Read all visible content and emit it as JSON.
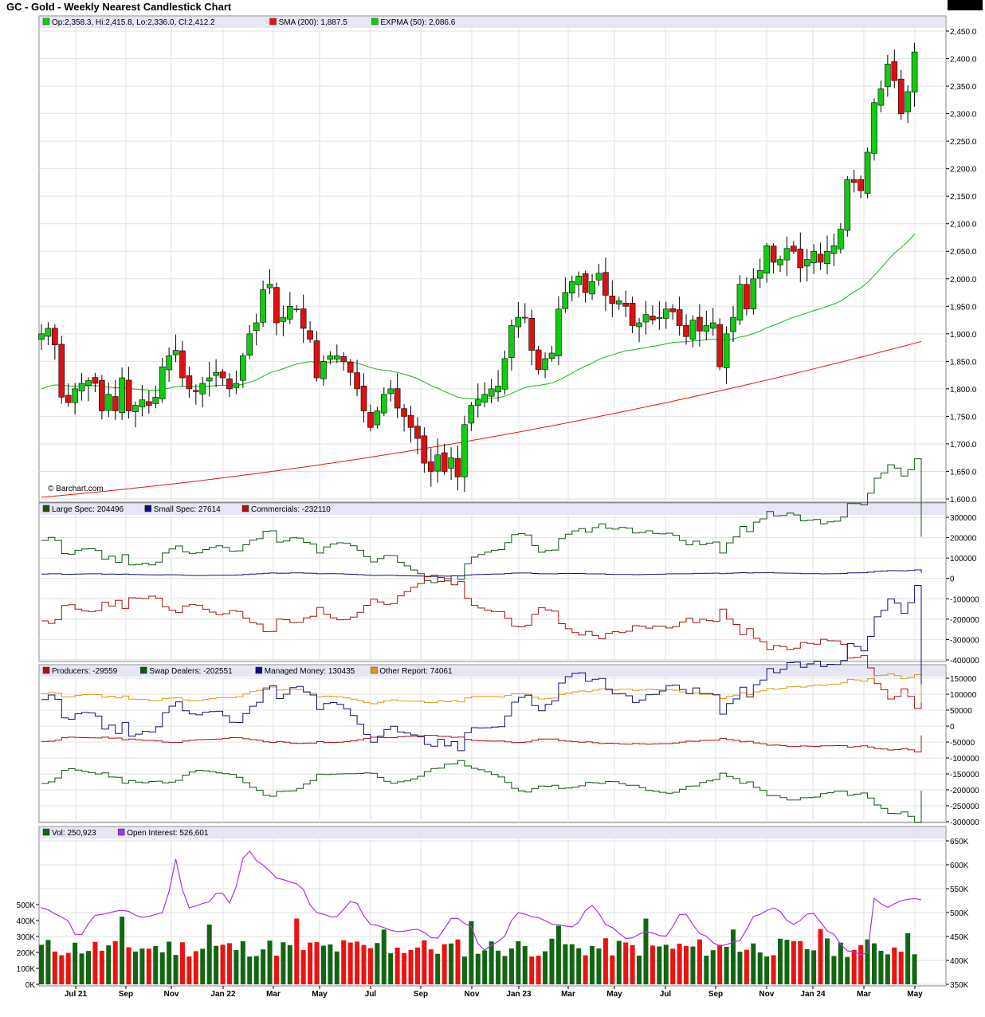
{
  "title": "GC - Gold - Weekly Nearest Candlestick Chart",
  "watermark": "© Barchart.com",
  "colors": {
    "up": "#11cc11",
    "down": "#dd1111",
    "sma": "#ee1111",
    "expma": "#11bb11",
    "large_spec": "#115511",
    "small_spec": "#111177",
    "commercials": "#aa1111",
    "producers": "#aa1111",
    "swap": "#115511",
    "managed": "#111177",
    "other": "#dd9911",
    "vol_up": "#116611",
    "vol_down": "#ee1111",
    "open_interest": "#aa33ee",
    "legend_band": "#e6e6f5"
  },
  "x_axis_labels": [
    "Jul 21",
    "Sep",
    "Nov",
    "Jan 22",
    "Mar",
    "May",
    "Jul",
    "Sep",
    "Nov",
    "Jan 23",
    "Mar",
    "May",
    "Jul",
    "Sep",
    "Nov",
    "Jan 24",
    "Mar",
    "May"
  ],
  "chart_data": [
    {
      "type": "candlestick",
      "name": "price",
      "legend": [
        {
          "label": "Op:2,358.3, Hi:2,415.8, Lo:2,336.0, Cl:2,412.2",
          "color": "#11cc11"
        },
        {
          "label": "SMA (200): 1,887.5",
          "color": "#ee1111"
        },
        {
          "label": "EXPMA (50): 2,086.6",
          "color": "#11cc11"
        }
      ],
      "ylim": [
        1600,
        2450
      ],
      "yticks": [
        1600,
        1650,
        1700,
        1750,
        1800,
        1850,
        1900,
        1950,
        2000,
        2050,
        2100,
        2150,
        2200,
        2250,
        2300,
        2350,
        2400,
        2450
      ],
      "ytick_labels": [
        "1,600.0",
        "1,650.0",
        "1,700.0",
        "1,750.0",
        "1,800.0",
        "1,850.0",
        "1,900.0",
        "1,950.0",
        "2,000.0",
        "2,050.0",
        "2,100.0",
        "2,150.0",
        "2,200.0",
        "2,250.0",
        "2,300.0",
        "2,350.0",
        "2,400.0",
        "2,450.0"
      ],
      "last_price_label": "2,412.2",
      "closes": [
        1900,
        1910,
        1880,
        1785,
        1775,
        1800,
        1810,
        1815,
        1810,
        1760,
        1790,
        1760,
        1820,
        1760,
        1770,
        1780,
        1770,
        1785,
        1840,
        1860,
        1870,
        1820,
        1800,
        1795,
        1810,
        1820,
        1830,
        1820,
        1800,
        1810,
        1860,
        1900,
        1920,
        1980,
        1990,
        1920,
        1930,
        1950,
        1945,
        1910,
        1890,
        1820,
        1850,
        1860,
        1860,
        1850,
        1830,
        1800,
        1760,
        1730,
        1760,
        1790,
        1800,
        1765,
        1750,
        1730,
        1710,
        1665,
        1650,
        1680,
        1650,
        1675,
        1640,
        1735,
        1770,
        1780,
        1790,
        1800,
        1805,
        1855,
        1915,
        1930,
        1930,
        1870,
        1835,
        1855,
        1865,
        1945,
        1975,
        1995,
        2005,
        1975,
        1995,
        2010,
        1970,
        1955,
        1960,
        1950,
        1915,
        1920,
        1935,
        1925,
        1930,
        1945,
        1940,
        1915,
        1895,
        1925,
        1905,
        1915,
        1920,
        1840,
        1900,
        1930,
        1990,
        1945,
        2000,
        2015,
        2060,
        2030,
        2035,
        2055,
        2050,
        2020,
        2035,
        2050,
        2030,
        2050,
        2060,
        2090,
        2180,
        2175,
        2160,
        2230,
        2320,
        2345,
        2390,
        2360,
        2300,
        2340,
        2412.2
      ],
      "sma_200": {
        "start": 1603,
        "end": 1887.5
      },
      "expma_50": {
        "end": 2086.6
      }
    },
    {
      "type": "line",
      "name": "cot_legacy",
      "legend": [
        {
          "label": "Large Spec: 204496",
          "color": "#115511"
        },
        {
          "label": "Small Spec: 27614",
          "color": "#111177"
        },
        {
          "label": "Commercials: -232110",
          "color": "#aa1111"
        }
      ],
      "ylim": [
        -400000,
        300000
      ],
      "yticks": [
        -400000,
        -300000,
        -200000,
        -100000,
        0,
        100000,
        200000,
        300000
      ],
      "ytick_labels": [
        "-400000",
        "-300000",
        "-200000",
        "-100000",
        "0",
        "100000",
        "200000",
        "300000"
      ],
      "series_keys": [
        "large_spec",
        "small_spec",
        "commercials"
      ]
    },
    {
      "type": "line",
      "name": "cot_disaggregated",
      "legend": [
        {
          "label": "Producers: -29559",
          "color": "#aa1111"
        },
        {
          "label": "Swap Dealers: -202551",
          "color": "#115511"
        },
        {
          "label": "Managed Money: 130435",
          "color": "#111177"
        },
        {
          "label": "Other Report: 74061",
          "color": "#dd9911"
        }
      ],
      "ylim": [
        -300000,
        150000
      ],
      "yticks": [
        -300000,
        -250000,
        -200000,
        -150000,
        -100000,
        -50000,
        0,
        50000,
        100000,
        150000
      ],
      "ytick_labels": [
        "-300000",
        "-250000",
        "-200000",
        "-150000",
        "-100000",
        "-50000",
        "0",
        "50000",
        "100000",
        "150000"
      ]
    },
    {
      "type": "bar",
      "name": "volume_open_interest",
      "legend": [
        {
          "label": "Vol: 250,923",
          "color": "#116611"
        },
        {
          "label": "Open Interest: 526,601",
          "color": "#aa33ee"
        }
      ],
      "vol_ylim": [
        0,
        500000
      ],
      "vol_yticks": [
        0,
        100000,
        200000,
        300000,
        400000,
        500000
      ],
      "vol_ytick_labels": [
        "0K",
        "100K",
        "200K",
        "300K",
        "400K",
        "500K"
      ],
      "oi_ylim": [
        350000,
        650000
      ],
      "oi_yticks": [
        350000,
        400000,
        450000,
        500000,
        550000,
        600000,
        650000
      ],
      "oi_ytick_labels": [
        "350K",
        "400K",
        "450K",
        "500K",
        "550K",
        "600K",
        "650K"
      ],
      "open_interest_keypoints": [
        [
          0,
          510000
        ],
        [
          5,
          490000
        ],
        [
          8,
          450000
        ],
        [
          12,
          495000
        ],
        [
          18,
          505000
        ],
        [
          22,
          490000
        ],
        [
          27,
          500000
        ],
        [
          29,
          615000
        ],
        [
          32,
          510000
        ],
        [
          36,
          520000
        ],
        [
          39,
          545000
        ],
        [
          41,
          520000
        ],
        [
          45,
          630000
        ],
        [
          48,
          600000
        ],
        [
          52,
          570000
        ],
        [
          56,
          560000
        ],
        [
          60,
          500000
        ],
        [
          64,
          490000
        ],
        [
          68,
          525000
        ],
        [
          72,
          475000
        ],
        [
          78,
          460000
        ],
        [
          82,
          465000
        ],
        [
          86,
          445000
        ],
        [
          90,
          490000
        ],
        [
          94,
          470000
        ],
        [
          96,
          420000
        ],
        [
          100,
          440000
        ],
        [
          104,
          500000
        ],
        [
          108,
          490000
        ],
        [
          112,
          475000
        ],
        [
          116,
          470000
        ],
        [
          120,
          515000
        ],
        [
          124,
          470000
        ],
        [
          128,
          445000
        ],
        [
          132,
          460000
        ],
        [
          136,
          450000
        ],
        [
          140,
          500000
        ],
        [
          144,
          455000
        ],
        [
          148,
          430000
        ],
        [
          152,
          440000
        ],
        [
          156,
          495000
        ],
        [
          160,
          510000
        ],
        [
          164,
          475000
        ],
        [
          168,
          500000
        ],
        [
          172,
          460000
        ],
        [
          176,
          420000
        ],
        [
          180,
          410000
        ],
        [
          182,
          535000
        ],
        [
          184,
          510000
        ],
        [
          188,
          525000
        ],
        [
          190,
          530000
        ],
        [
          192,
          526601
        ]
      ]
    }
  ]
}
